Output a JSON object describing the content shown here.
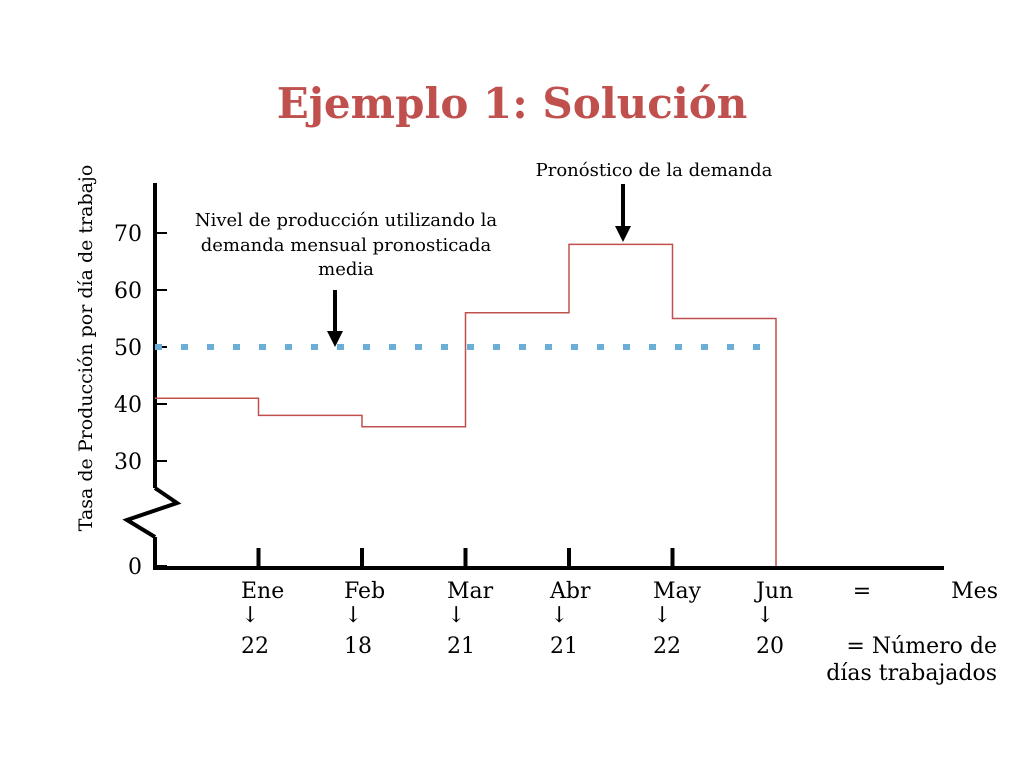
{
  "slide": {
    "title": "Ejemplo 1: Solución"
  },
  "chart_data": {
    "type": "line",
    "title": "",
    "xlabel": "",
    "ylabel": "Tasa de Producción por día de trabajo",
    "ylim": [
      0,
      75
    ],
    "y_ticks": [
      "70",
      "60",
      "50",
      "40",
      "30",
      "0"
    ],
    "axis_break": true,
    "grid": false,
    "categories": [
      "Ene",
      "Feb",
      "Mar",
      "Abr",
      "May",
      "Jun"
    ],
    "working_days": [
      "22",
      "18",
      "21",
      "21",
      "22",
      "20"
    ],
    "series": [
      {
        "name": "",
        "style": "step",
        "color": "#c0504d",
        "values": [
          41,
          38,
          36,
          56,
          68,
          55
        ]
      },
      {
        "name": "",
        "style": "dotted",
        "color": "#6baed6",
        "values": [
          50,
          50,
          50,
          50,
          50,
          50
        ]
      }
    ],
    "row_labels": {
      "month_eq": "=",
      "month": "Mes",
      "down_arrow": "↓",
      "days_line1": "= Número de",
      "days_line2": "días trabajados"
    },
    "annotations": {
      "forecast": "Pronóstico de la demanda",
      "level_line1": "Nivel de producción utilizando la",
      "level_line2": "demanda mensual pronosticada",
      "level_line3": "media"
    }
  }
}
